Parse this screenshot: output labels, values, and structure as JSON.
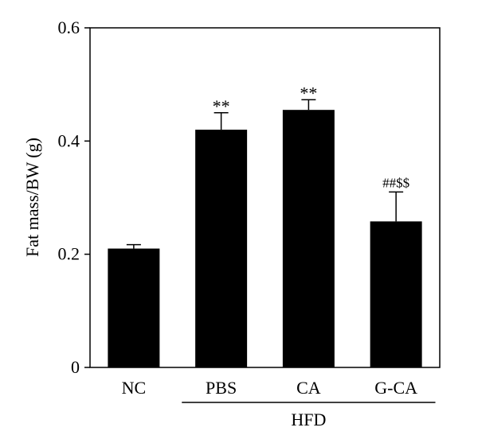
{
  "chart_data": {
    "type": "bar",
    "title": "",
    "xlabel": "",
    "ylabel": "Fat mass/BW (g)",
    "ylim": [
      0,
      0.6
    ],
    "yticks": [
      0,
      0.2,
      0.4,
      0.6
    ],
    "ytick_labels": [
      "0",
      "0.2",
      "0.4",
      "0.6"
    ],
    "categories": [
      "NC",
      "PBS",
      "CA",
      "G-CA"
    ],
    "values": [
      0.21,
      0.42,
      0.455,
      0.258
    ],
    "errors": [
      0.007,
      0.03,
      0.018,
      0.052
    ],
    "annotations": [
      "",
      "**",
      "**",
      "##$$"
    ],
    "group_label": "HFD",
    "group_span": [
      "PBS",
      "G-CA"
    ],
    "bar_color": "#000000",
    "grid": false,
    "legend": "none"
  }
}
